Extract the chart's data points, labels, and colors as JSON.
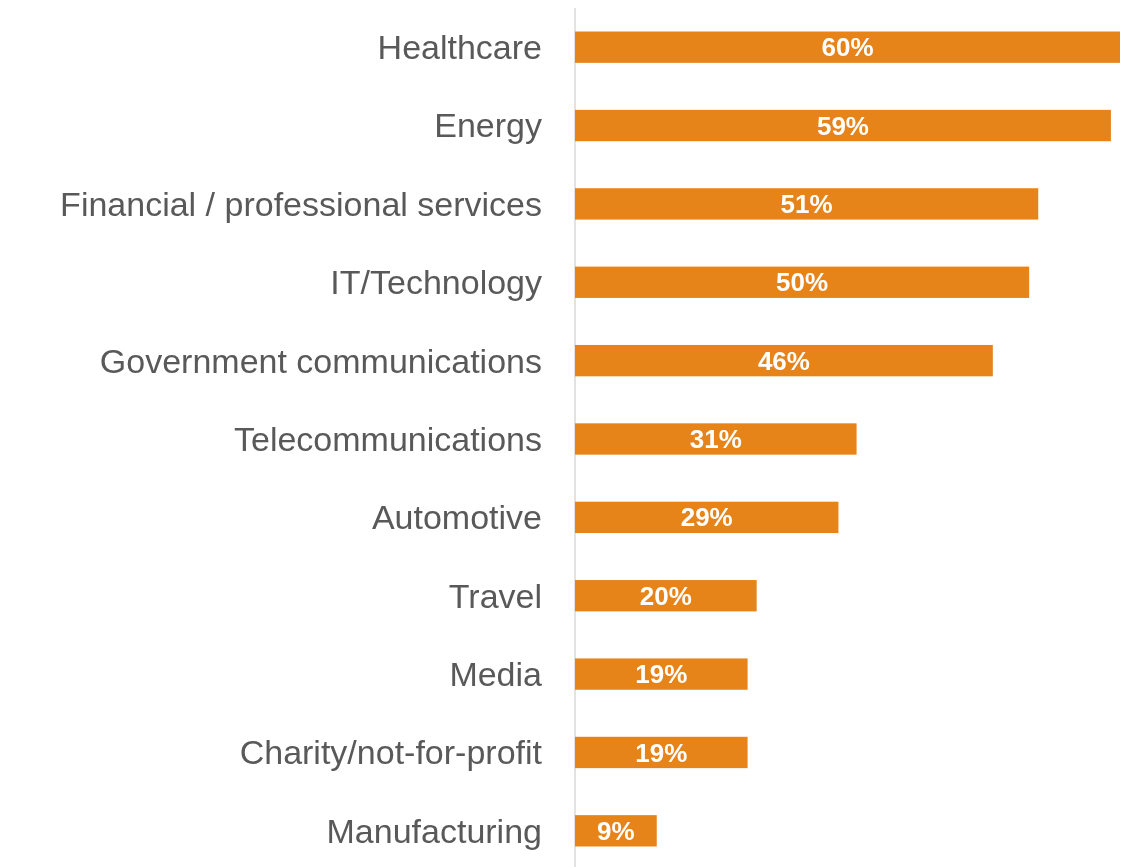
{
  "chart_data": {
    "type": "bar",
    "orientation": "horizontal",
    "categories": [
      "Healthcare",
      "Energy",
      "Financial / professional services",
      "IT/Technology",
      "Government communications",
      "Telecommunications",
      "Automotive",
      "Travel",
      "Media",
      "Charity/not-for-profit",
      "Manufacturing"
    ],
    "values": [
      60,
      59,
      51,
      50,
      46,
      31,
      29,
      20,
      19,
      19,
      9
    ],
    "value_labels": [
      "60%",
      "59%",
      "51%",
      "50%",
      "46%",
      "31%",
      "29%",
      "20%",
      "19%",
      "19%",
      "9%"
    ],
    "color": "#e6841a"
  }
}
